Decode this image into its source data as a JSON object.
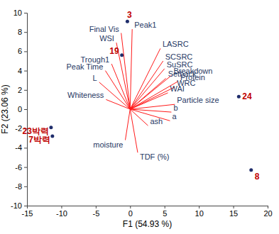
{
  "chart_data": {
    "type": "biplot",
    "x_label": "F1 (54.93 %)",
    "y_label": "F2 (23.06 %)",
    "xlim": [
      -15,
      20
    ],
    "ylim": [
      -10,
      10
    ],
    "xticks": [
      -15,
      -10,
      -5,
      0,
      5,
      10,
      15,
      20
    ],
    "yticks": [
      -10,
      -8,
      -6,
      -4,
      -2,
      0,
      2,
      4,
      6,
      8,
      10
    ],
    "grid": false,
    "series": [
      {
        "type": "scatter",
        "color": "#1f2d6b",
        "marker": "circle",
        "labels": [
          "3",
          "19",
          "24",
          "8",
          "23박력",
          "7박력"
        ],
        "x": [
          -0.4,
          -1.2,
          15.8,
          17.6,
          -11.5,
          -11.3
        ],
        "values": [
          9.1,
          5.6,
          1.3,
          -6.3,
          -1.9,
          -2.8
        ]
      },
      {
        "type": "vector",
        "color": "#ff1a1a",
        "labels": [
          "Final Vis",
          "Peak1",
          "WSI",
          "Trough1",
          "Peak Time",
          "L",
          "Whiteness",
          "moisture",
          "TDF (%)",
          "ash",
          "a",
          "b",
          "Particle size",
          "WAI",
          "WRC",
          "Setback",
          "SuSRC",
          "SCSRC",
          "LASRC",
          "Breakdown",
          "Protein"
        ],
        "x": [
          -1.3,
          0.3,
          -2.0,
          -2.7,
          -3.6,
          -4.5,
          -3.5,
          -0.7,
          1.1,
          2.6,
          5.8,
          6.0,
          6.5,
          5.5,
          6.5,
          5.2,
          5.0,
          4.8,
          4.4,
          6.0,
          7.0
        ],
        "values": [
          7.9,
          8.3,
          6.9,
          4.7,
          4.0,
          2.8,
          1.0,
          -3.2,
          -4.5,
          -1.7,
          -1.2,
          -0.3,
          0.5,
          1.7,
          2.3,
          3.2,
          4.2,
          5.0,
          6.3,
          3.5,
          2.9
        ]
      }
    ]
  }
}
